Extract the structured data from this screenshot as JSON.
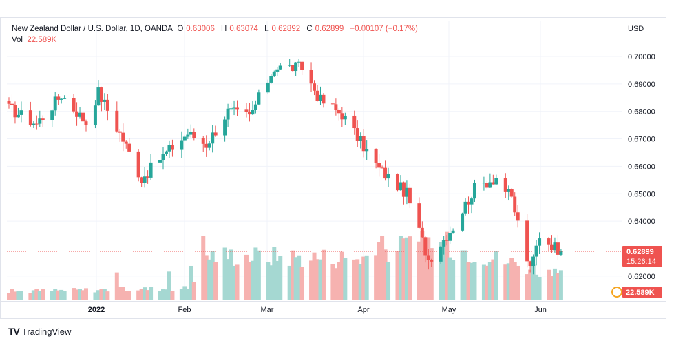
{
  "header": {
    "symbol": "New Zealand Dollar / U.S. Dollar, 1D, OANDA",
    "o_label": "O",
    "o_value": "0.63006",
    "h_label": "H",
    "h_value": "0.63074",
    "l_label": "L",
    "l_value": "0.62892",
    "c_label": "C",
    "c_value": "0.62899",
    "change": "−0.00107 (−0.17%)",
    "vol_label": "Vol",
    "vol_value": "22.589K"
  },
  "brand": {
    "name": "TradingView",
    "logo": "TV"
  },
  "colors": {
    "up": "#26a69a",
    "down": "#ef5350",
    "vol_up": "#a5d8d2",
    "vol_down": "#f6b2b0",
    "grid": "#f0f3fa",
    "text": "#131722",
    "price_tag": "#ef5350"
  },
  "chart_data": {
    "type": "candlestick",
    "currency_label": "USD",
    "y_ticks": [
      "0.70000",
      "0.69000",
      "0.68000",
      "0.67000",
      "0.66000",
      "0.65000",
      "0.64000",
      "0.62000"
    ],
    "ylim": [
      0.6,
      0.71
    ],
    "x_ticks": [
      "2022",
      "Feb",
      "Mar",
      "Apr",
      "May",
      "Jun"
    ],
    "last_price": "0.62899",
    "countdown": "15:26:14",
    "last_volume": "22.589K",
    "monthly_path": [
      {
        "date": "2021-12-27",
        "close": 0.681
      },
      {
        "date": "2022-01-05",
        "close": 0.6755
      },
      {
        "date": "2022-01-13",
        "close": 0.686
      },
      {
        "date": "2022-01-21",
        "close": 0.676
      },
      {
        "date": "2022-01-25",
        "close": 0.687
      },
      {
        "date": "2022-02-01",
        "close": 0.672
      },
      {
        "date": "2022-02-08",
        "close": 0.6555
      },
      {
        "date": "2022-02-15",
        "close": 0.664
      },
      {
        "date": "2022-02-23",
        "close": 0.672
      },
      {
        "date": "2022-03-01",
        "close": 0.668
      },
      {
        "date": "2022-03-08",
        "close": 0.68
      },
      {
        "date": "2022-03-15",
        "close": 0.678
      },
      {
        "date": "2022-03-23",
        "close": 0.696
      },
      {
        "date": "2022-04-01",
        "close": 0.696
      },
      {
        "date": "2022-04-07",
        "close": 0.684
      },
      {
        "date": "2022-04-14",
        "close": 0.679
      },
      {
        "date": "2022-04-26",
        "close": 0.659
      },
      {
        "date": "2022-05-05",
        "close": 0.65
      },
      {
        "date": "2022-05-12",
        "close": 0.626
      },
      {
        "date": "2022-05-20",
        "close": 0.638
      },
      {
        "date": "2022-05-27",
        "close": 0.652
      },
      {
        "date": "2022-06-03",
        "close": 0.656
      },
      {
        "date": "2022-06-08",
        "close": 0.648
      },
      {
        "date": "2022-06-14",
        "close": 0.622
      },
      {
        "date": "2022-06-17",
        "close": 0.635
      },
      {
        "date": "2022-06-24",
        "close": 0.629
      }
    ],
    "volume_ramp": [
      {
        "date": "2021-12-27",
        "volume": 3
      },
      {
        "date": "2022-02-23",
        "volume": 4
      },
      {
        "date": "2022-03-01",
        "volume": 15
      },
      {
        "date": "2022-04-20",
        "volume": 14
      },
      {
        "date": "2022-05-12",
        "volume": 20
      },
      {
        "date": "2022-06-24",
        "volume": 8
      }
    ]
  }
}
